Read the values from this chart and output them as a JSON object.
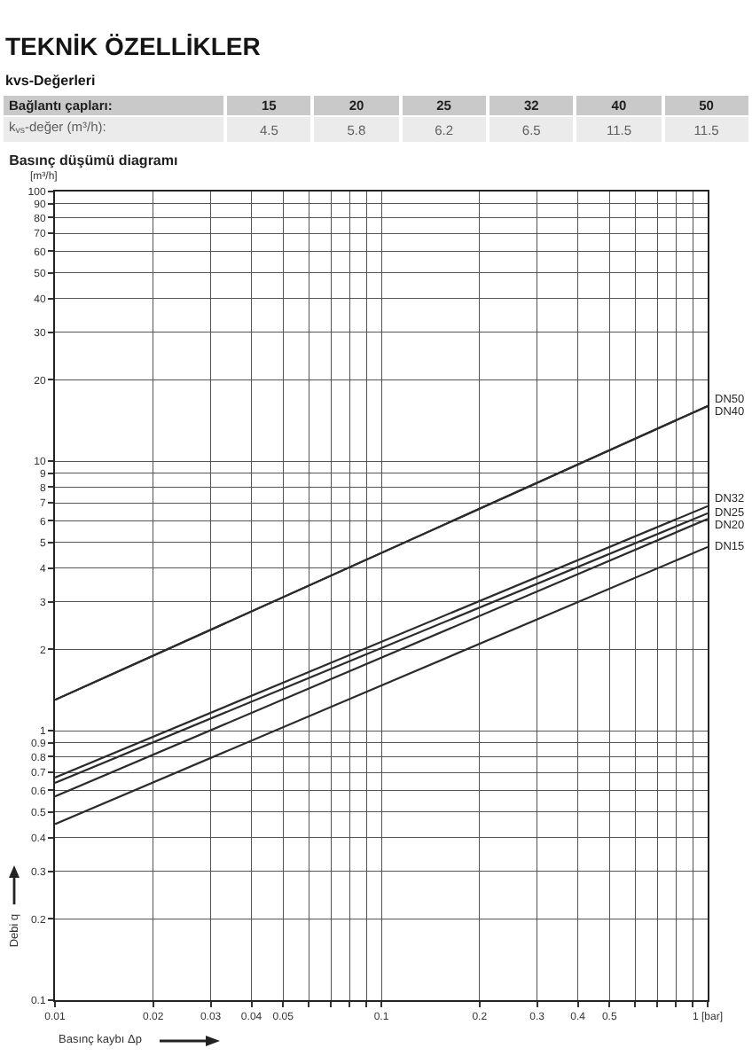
{
  "chart_data": [
    {
      "type": "other",
      "title": "TEKNİK ÖZELLİKLER",
      "subtitle": "kvs-Değerleri",
      "annotations": [
        "Bağlantı çapları:",
        "15",
        "20",
        "25",
        "32",
        "40",
        "50",
        "k$_{vs}$-değer (m³/h):",
        "4.5",
        "5.8",
        "6.2",
        "6.5",
        "11.5",
        "11.5"
      ]
    },
    {
      "type": "line",
      "title": "Basınç düşümü diagramı",
      "xlabel": "Basınç kaybı Δp",
      "ylabel": "Debi q",
      "annotations": [
        "[m³/h]"
      ],
      "log": "xy",
      "grid": true,
      "xlim": [
        0.01,
        1
      ],
      "ylim": [
        0.1,
        100
      ],
      "xticks": [
        0.01,
        0.02,
        0.03,
        0.04,
        0.05,
        {
          "value": 0.06,
          "label": null
        },
        {
          "value": 0.07,
          "label": null
        },
        {
          "value": 0.08,
          "label": null
        },
        {
          "value": 0.09,
          "label": null
        },
        0.1,
        0.2,
        0.3,
        0.4,
        0.5,
        {
          "value": 0.6,
          "label": null
        },
        {
          "value": 0.7,
          "label": null
        },
        {
          "value": 0.8,
          "label": null
        },
        {
          "value": 0.9,
          "label": null
        },
        {
          "value": 1,
          "label": "1 [bar]"
        }
      ],
      "yticks": [
        0.1,
        0.2,
        0.3,
        0.4,
        0.5,
        0.6,
        0.7,
        0.8,
        0.9,
        1,
        2,
        3,
        4,
        5,
        6,
        7,
        8,
        9,
        10,
        20,
        30,
        40,
        50,
        60,
        70,
        80,
        90,
        100
      ],
      "x": [
        0.01,
        1
      ],
      "series": [
        {
          "name": "DN50",
          "color": "#2b2b2b",
          "values": [
            1.3,
            16
          ]
        },
        {
          "name": "DN40",
          "color": "#2b2b2b",
          "values": [
            1.3,
            16
          ]
        },
        {
          "name": "DN32",
          "color": "#2b2b2b",
          "values": [
            0.67,
            6.8
          ]
        },
        {
          "name": "DN25",
          "color": "#2b2b2b",
          "values": [
            0.64,
            6.4
          ]
        },
        {
          "name": "DN20",
          "color": "#2b2b2b",
          "values": [
            0.57,
            6.1
          ]
        },
        {
          "name": "DN15",
          "color": "#2b2b2b",
          "values": [
            0.45,
            4.8
          ]
        }
      ]
    }
  ]
}
